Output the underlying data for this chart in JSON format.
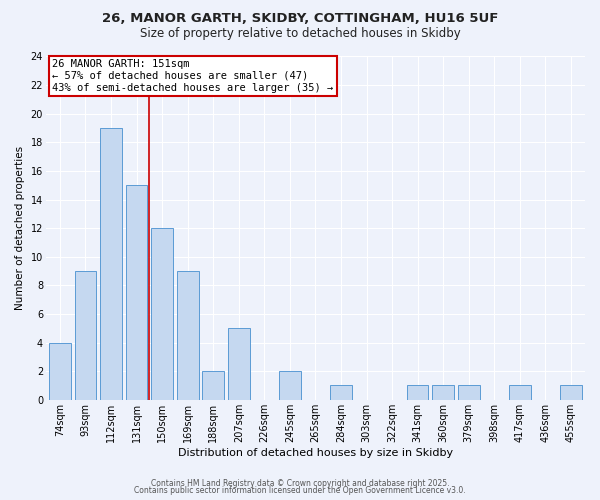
{
  "title1": "26, MANOR GARTH, SKIDBY, COTTINGHAM, HU16 5UF",
  "title2": "Size of property relative to detached houses in Skidby",
  "xlabel": "Distribution of detached houses by size in Skidby",
  "ylabel": "Number of detached properties",
  "categories": [
    "74sqm",
    "93sqm",
    "112sqm",
    "131sqm",
    "150sqm",
    "169sqm",
    "188sqm",
    "207sqm",
    "226sqm",
    "245sqm",
    "265sqm",
    "284sqm",
    "303sqm",
    "322sqm",
    "341sqm",
    "360sqm",
    "379sqm",
    "398sqm",
    "417sqm",
    "436sqm",
    "455sqm"
  ],
  "values": [
    4,
    9,
    19,
    15,
    12,
    9,
    2,
    5,
    0,
    2,
    0,
    1,
    0,
    0,
    1,
    1,
    1,
    0,
    1,
    0,
    1
  ],
  "bar_color": "#c5d8f0",
  "bar_edge_color": "#5b9bd5",
  "annotation_title": "26 MANOR GARTH: 151sqm",
  "annotation_line1": "← 57% of detached houses are smaller (47)",
  "annotation_line2": "43% of semi-detached houses are larger (35) →",
  "annotation_box_facecolor": "#ffffff",
  "annotation_box_edgecolor": "#cc0000",
  "vline_x_index": 3.5,
  "ylim": [
    0,
    24
  ],
  "yticks": [
    0,
    2,
    4,
    6,
    8,
    10,
    12,
    14,
    16,
    18,
    20,
    22,
    24
  ],
  "footer1": "Contains HM Land Registry data © Crown copyright and database right 2025.",
  "footer2": "Contains public sector information licensed under the Open Government Licence v3.0.",
  "bg_color": "#eef2fb",
  "grid_color": "#ffffff",
  "title1_fontsize": 9.5,
  "title2_fontsize": 8.5,
  "xlabel_fontsize": 8,
  "ylabel_fontsize": 7.5,
  "tick_fontsize": 7,
  "footer_fontsize": 5.5,
  "ann_fontsize": 7.5
}
